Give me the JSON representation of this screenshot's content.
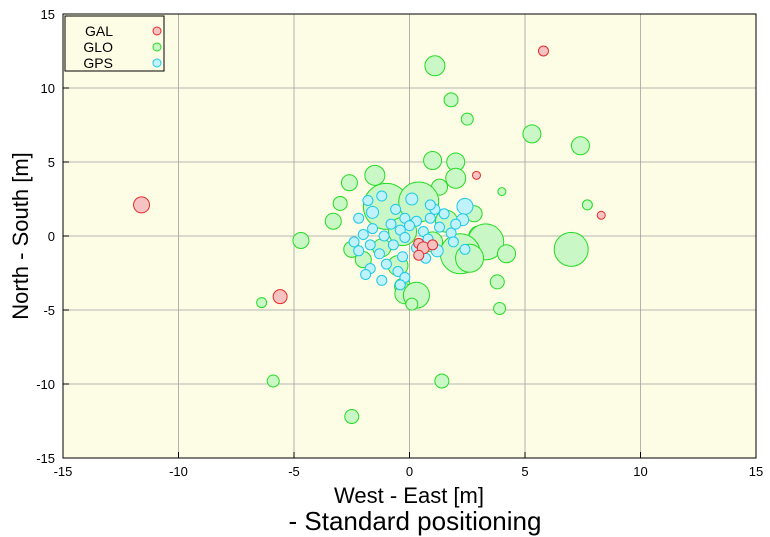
{
  "chart_data": {
    "type": "scatter",
    "xlabel": "West - East [m]",
    "ylabel": "North - South [m]",
    "caption": "- Standard positioning",
    "xlim": [
      -15,
      15
    ],
    "ylim": [
      -15,
      15
    ],
    "xticks": [
      "-15",
      "-10",
      "-5",
      "0",
      "5",
      "10",
      "15"
    ],
    "yticks": [
      "-15",
      "-10",
      "-5",
      "0",
      "5",
      "10",
      "15"
    ],
    "grid": true,
    "legend": {
      "placement": "top-left"
    },
    "series": [
      {
        "name": "GLO",
        "color": "#22dd22",
        "fill": "#c9f7c5",
        "points": [
          {
            "x": 1.1,
            "y": 11.5,
            "s": 10
          },
          {
            "x": 1.8,
            "y": 9.2,
            "s": 7
          },
          {
            "x": 2.5,
            "y": 7.9,
            "s": 6
          },
          {
            "x": 5.3,
            "y": 6.9,
            "s": 9
          },
          {
            "x": 7.4,
            "y": 6.1,
            "s": 9
          },
          {
            "x": 1.0,
            "y": 5.1,
            "s": 9
          },
          {
            "x": 2.0,
            "y": 5.0,
            "s": 9
          },
          {
            "x": -1.5,
            "y": 4.1,
            "s": 10
          },
          {
            "x": 2.0,
            "y": 3.9,
            "s": 10
          },
          {
            "x": -2.6,
            "y": 3.6,
            "s": 8
          },
          {
            "x": 1.3,
            "y": 3.3,
            "s": 8
          },
          {
            "x": 4.0,
            "y": 3.0,
            "s": 4
          },
          {
            "x": -1.0,
            "y": 2.0,
            "s": 23
          },
          {
            "x": 0.4,
            "y": 2.3,
            "s": 20
          },
          {
            "x": 7.7,
            "y": 2.1,
            "s": 5
          },
          {
            "x": -3.0,
            "y": 2.2,
            "s": 7
          },
          {
            "x": -3.3,
            "y": 1.0,
            "s": 8
          },
          {
            "x": 2.8,
            "y": 1.5,
            "s": 8
          },
          {
            "x": 3.0,
            "y": 0.0,
            "s": 10
          },
          {
            "x": 3.3,
            "y": -0.4,
            "s": 18
          },
          {
            "x": 7.0,
            "y": -0.9,
            "s": 17
          },
          {
            "x": 4.2,
            "y": -1.2,
            "s": 9
          },
          {
            "x": 2.2,
            "y": -1.2,
            "s": 20
          },
          {
            "x": 2.6,
            "y": -1.5,
            "s": 14
          },
          {
            "x": -4.7,
            "y": -0.3,
            "s": 8
          },
          {
            "x": -2.5,
            "y": -0.9,
            "s": 8
          },
          {
            "x": 1.0,
            "y": -0.4,
            "s": 10
          },
          {
            "x": -0.5,
            "y": -2.0,
            "s": 10
          },
          {
            "x": -0.3,
            "y": -3.4,
            "s": 8
          },
          {
            "x": -0.2,
            "y": -3.9,
            "s": 10
          },
          {
            "x": 0.3,
            "y": -4.0,
            "s": 13
          },
          {
            "x": 3.8,
            "y": -3.1,
            "s": 7
          },
          {
            "x": 3.9,
            "y": -4.9,
            "s": 6
          },
          {
            "x": -6.4,
            "y": -4.5,
            "s": 5
          },
          {
            "x": -5.9,
            "y": -9.8,
            "s": 6
          },
          {
            "x": 1.4,
            "y": -9.8,
            "s": 7
          },
          {
            "x": -2.5,
            "y": -12.2,
            "s": 7
          },
          {
            "x": -1.2,
            "y": -0.8,
            "s": 9
          },
          {
            "x": -0.3,
            "y": 0.3,
            "s": 14
          },
          {
            "x": 1.6,
            "y": 1.0,
            "s": 11
          },
          {
            "x": -2.0,
            "y": -1.6,
            "s": 8
          },
          {
            "x": 0.1,
            "y": -4.6,
            "s": 6
          }
        ]
      },
      {
        "name": "GPS",
        "color": "#1ec8e8",
        "fill": "#bff2fb",
        "points": [
          {
            "x": 0.1,
            "y": 2.5,
            "s": 6
          },
          {
            "x": 2.4,
            "y": 2.0,
            "s": 8
          },
          {
            "x": -1.2,
            "y": 2.7,
            "s": 5
          },
          {
            "x": -1.8,
            "y": 2.4,
            "s": 5
          },
          {
            "x": -1.6,
            "y": 1.6,
            "s": 6
          },
          {
            "x": -0.6,
            "y": 1.8,
            "s": 5
          },
          {
            "x": 1.1,
            "y": 1.8,
            "s": 5
          },
          {
            "x": 1.5,
            "y": 1.5,
            "s": 5
          },
          {
            "x": -0.2,
            "y": 1.2,
            "s": 5
          },
          {
            "x": 0.3,
            "y": 1.0,
            "s": 5
          },
          {
            "x": 0.9,
            "y": 1.2,
            "s": 5
          },
          {
            "x": 2.3,
            "y": 1.1,
            "s": 6
          },
          {
            "x": -2.2,
            "y": 1.2,
            "s": 5
          },
          {
            "x": -0.8,
            "y": 0.8,
            "s": 5
          },
          {
            "x": 1.3,
            "y": 0.6,
            "s": 5
          },
          {
            "x": -1.6,
            "y": 0.5,
            "s": 5
          },
          {
            "x": -0.4,
            "y": 0.4,
            "s": 5
          },
          {
            "x": 0.6,
            "y": 0.3,
            "s": 5
          },
          {
            "x": 1.8,
            "y": 0.2,
            "s": 5
          },
          {
            "x": -2.0,
            "y": 0.1,
            "s": 5
          },
          {
            "x": -1.1,
            "y": 0.0,
            "s": 5
          },
          {
            "x": -0.2,
            "y": -0.1,
            "s": 5
          },
          {
            "x": 0.8,
            "y": -0.2,
            "s": 5
          },
          {
            "x": 1.9,
            "y": -0.4,
            "s": 5
          },
          {
            "x": -1.7,
            "y": -0.6,
            "s": 5
          },
          {
            "x": -0.7,
            "y": -0.6,
            "s": 5
          },
          {
            "x": 0.3,
            "y": -0.8,
            "s": 5
          },
          {
            "x": 1.2,
            "y": -1.0,
            "s": 6
          },
          {
            "x": -1.3,
            "y": -1.2,
            "s": 5
          },
          {
            "x": -0.3,
            "y": -1.4,
            "s": 5
          },
          {
            "x": 0.7,
            "y": -1.5,
            "s": 5
          },
          {
            "x": -2.2,
            "y": -1.0,
            "s": 5
          },
          {
            "x": -1.0,
            "y": -1.9,
            "s": 5
          },
          {
            "x": -1.7,
            "y": -2.2,
            "s": 5
          },
          {
            "x": -0.5,
            "y": -2.4,
            "s": 5
          },
          {
            "x": -1.9,
            "y": -2.6,
            "s": 5
          },
          {
            "x": -0.2,
            "y": -2.8,
            "s": 5
          },
          {
            "x": -1.2,
            "y": -3.0,
            "s": 5
          },
          {
            "x": -0.4,
            "y": -3.3,
            "s": 5
          },
          {
            "x": 0.9,
            "y": 2.1,
            "s": 5
          },
          {
            "x": 2.0,
            "y": 0.8,
            "s": 5
          },
          {
            "x": 0.0,
            "y": 0.7,
            "s": 5
          },
          {
            "x": -2.4,
            "y": -0.4,
            "s": 5
          },
          {
            "x": 2.4,
            "y": -0.9,
            "s": 5
          }
        ]
      },
      {
        "name": "GAL",
        "color": "#e82a2a",
        "fill": "#f6c3c3",
        "points": [
          {
            "x": 5.8,
            "y": 12.5,
            "s": 5
          },
          {
            "x": 2.9,
            "y": 4.1,
            "s": 4
          },
          {
            "x": 8.3,
            "y": 1.4,
            "s": 4
          },
          {
            "x": -11.6,
            "y": 2.1,
            "s": 8
          },
          {
            "x": -5.6,
            "y": -4.1,
            "s": 7
          },
          {
            "x": 0.4,
            "y": -0.5,
            "s": 5
          },
          {
            "x": 0.6,
            "y": -0.8,
            "s": 6
          },
          {
            "x": 1.0,
            "y": -0.6,
            "s": 5
          },
          {
            "x": 0.4,
            "y": -1.3,
            "s": 5
          }
        ]
      }
    ],
    "legend_order": [
      "GAL",
      "GLO",
      "GPS"
    ]
  },
  "colors": {
    "plot_bg": "#fdfde6",
    "grid": "#a0a0a0"
  }
}
